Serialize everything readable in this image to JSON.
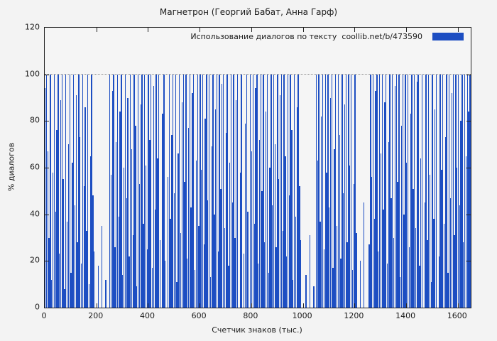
{
  "page": {
    "background": "#f3f3f3"
  },
  "chart_data": {
    "type": "bar",
    "title": "Магнетрон (Георгий Бабат, Анна Гарф)",
    "legend": "Использование диалогов по тексту  coollib.net/b/473590",
    "xlabel": "Счетчик знаков (тыс.)",
    "ylabel": "% диалогов",
    "xlim": [
      0,
      1650
    ],
    "ylim": [
      0,
      120
    ],
    "x_ticks": [
      0,
      200,
      400,
      600,
      800,
      1000,
      1200,
      1400,
      1600
    ],
    "y_ticks": [
      0,
      20,
      40,
      60,
      80,
      100,
      120
    ],
    "gridline_y": 100,
    "bar_color": "#1d4ec2",
    "x_start": 0,
    "x_step": 5,
    "values": [
      94,
      100,
      67,
      30,
      100,
      12,
      58,
      100,
      41,
      76,
      100,
      23,
      89,
      100,
      55,
      8,
      100,
      37,
      70,
      100,
      15,
      62,
      100,
      44,
      91,
      28,
      100,
      73,
      19,
      100,
      52,
      86,
      33,
      100,
      10,
      65,
      100,
      48,
      24,
      0,
      0,
      18,
      0,
      0,
      35,
      0,
      0,
      12,
      0,
      0,
      100,
      57,
      93,
      100,
      26,
      71,
      100,
      39,
      84,
      100,
      14,
      60,
      100,
      47,
      90,
      22,
      100,
      68,
      31,
      100,
      78,
      9,
      100,
      53,
      87,
      100,
      36,
      100,
      61,
      25,
      100,
      72,
      100,
      17,
      95,
      42,
      100,
      64,
      100,
      29,
      0,
      83,
      100,
      20,
      0,
      56,
      100,
      38,
      74,
      100,
      49,
      100,
      11,
      66,
      100,
      32,
      88,
      100,
      54,
      100,
      21,
      77,
      100,
      43,
      92,
      100,
      16,
      63,
      100,
      35,
      100,
      59,
      100,
      27,
      81,
      100,
      46,
      100,
      13,
      69,
      100,
      40,
      85,
      100,
      24,
      100,
      51,
      96,
      100,
      34,
      75,
      100,
      18,
      62,
      100,
      45,
      100,
      30,
      89,
      100,
      0,
      58,
      100,
      0,
      23,
      79,
      100,
      41,
      0,
      100,
      67,
      100,
      36,
      94,
      100,
      19,
      72,
      100,
      50,
      100,
      28,
      84,
      100,
      15,
      60,
      100,
      44,
      100,
      70,
      26,
      100,
      55,
      91,
      100,
      33,
      100,
      65,
      22,
      100,
      48,
      100,
      76,
      12,
      100,
      39,
      86,
      100,
      52,
      29,
      0,
      0,
      0,
      14,
      0,
      0,
      31,
      0,
      0,
      9,
      0,
      100,
      63,
      100,
      37,
      82,
      100,
      25,
      100,
      58,
      100,
      43,
      90,
      100,
      17,
      68,
      100,
      35,
      100,
      74,
      21,
      100,
      49,
      87,
      100,
      28,
      100,
      61,
      100,
      16,
      53,
      100,
      32,
      0,
      0,
      20,
      0,
      0,
      45,
      0,
      0,
      0,
      27,
      100,
      56,
      100,
      38,
      93,
      100,
      24,
      100,
      66,
      100,
      42,
      88,
      100,
      19,
      71,
      100,
      47,
      100,
      30,
      95,
      100,
      54,
      100,
      13,
      78,
      100,
      40,
      100,
      62,
      100,
      26,
      83,
      100,
      51,
      100,
      34,
      97,
      100,
      18,
      64,
      100,
      0,
      45,
      100,
      29,
      100,
      57,
      11,
      100,
      38,
      85,
      100,
      0,
      22,
      100,
      59,
      100,
      36,
      73,
      100,
      15,
      100,
      47,
      92,
      100,
      31,
      100,
      60,
      100,
      44,
      80,
      100,
      28,
      100,
      65,
      100,
      84,
      100
    ]
  }
}
